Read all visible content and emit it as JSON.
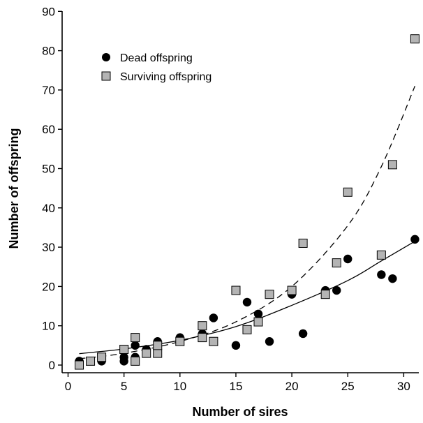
{
  "chart_data": {
    "type": "scatter",
    "title": "",
    "xlabel": "Number of sires",
    "ylabel": "Number of offspring",
    "xlim": [
      0,
      32
    ],
    "ylim": [
      -2,
      90
    ],
    "xticks": [
      0,
      5,
      10,
      15,
      20,
      25,
      30
    ],
    "yticks": [
      0,
      10,
      20,
      30,
      40,
      50,
      60,
      70,
      80,
      90
    ],
    "grid": false,
    "legend_position": "top-left",
    "series": [
      {
        "name": "Dead offspring",
        "marker": "circle",
        "color": "#000000",
        "points": [
          [
            1,
            1
          ],
          [
            3,
            1
          ],
          [
            5,
            1
          ],
          [
            5,
            2
          ],
          [
            6,
            2
          ],
          [
            6,
            5
          ],
          [
            7,
            4
          ],
          [
            8,
            6
          ],
          [
            10,
            7
          ],
          [
            12,
            8
          ],
          [
            13,
            12
          ],
          [
            15,
            5
          ],
          [
            16,
            16
          ],
          [
            17,
            13
          ],
          [
            18,
            6
          ],
          [
            20,
            18
          ],
          [
            21,
            8
          ],
          [
            23,
            19
          ],
          [
            24,
            19
          ],
          [
            25,
            27
          ],
          [
            28,
            23
          ],
          [
            29,
            22
          ],
          [
            31,
            32
          ]
        ],
        "fit": {
          "style": "solid",
          "points": [
            [
              1,
              2.9
            ],
            [
              5,
              4.1
            ],
            [
              10,
              6.3
            ],
            [
              15,
              9.8
            ],
            [
              20,
              15.2
            ],
            [
              25,
              21.5
            ],
            [
              28,
              26.5
            ],
            [
              31,
              31.5
            ]
          ]
        }
      },
      {
        "name": "Surviving offspring",
        "marker": "square",
        "color": "#b4b4b4",
        "points": [
          [
            1,
            0
          ],
          [
            2,
            1
          ],
          [
            3,
            2
          ],
          [
            5,
            4
          ],
          [
            6,
            1
          ],
          [
            6,
            7
          ],
          [
            7,
            3
          ],
          [
            8,
            3
          ],
          [
            8,
            5
          ],
          [
            10,
            6
          ],
          [
            12,
            7
          ],
          [
            12,
            10
          ],
          [
            13,
            6
          ],
          [
            15,
            19
          ],
          [
            16,
            9
          ],
          [
            17,
            11
          ],
          [
            18,
            18
          ],
          [
            20,
            19
          ],
          [
            21,
            31
          ],
          [
            23,
            18
          ],
          [
            24,
            26
          ],
          [
            25,
            44
          ],
          [
            28,
            28
          ],
          [
            29,
            51
          ],
          [
            31,
            83
          ]
        ],
        "fit": {
          "style": "dashed",
          "points": [
            [
              1,
              1.6
            ],
            [
              5,
              3.0
            ],
            [
              10,
              6.0
            ],
            [
              15,
              11.0
            ],
            [
              20,
              20.0
            ],
            [
              25,
              35.5
            ],
            [
              28,
              50.5
            ],
            [
              31,
              71.0
            ]
          ]
        }
      }
    ]
  }
}
